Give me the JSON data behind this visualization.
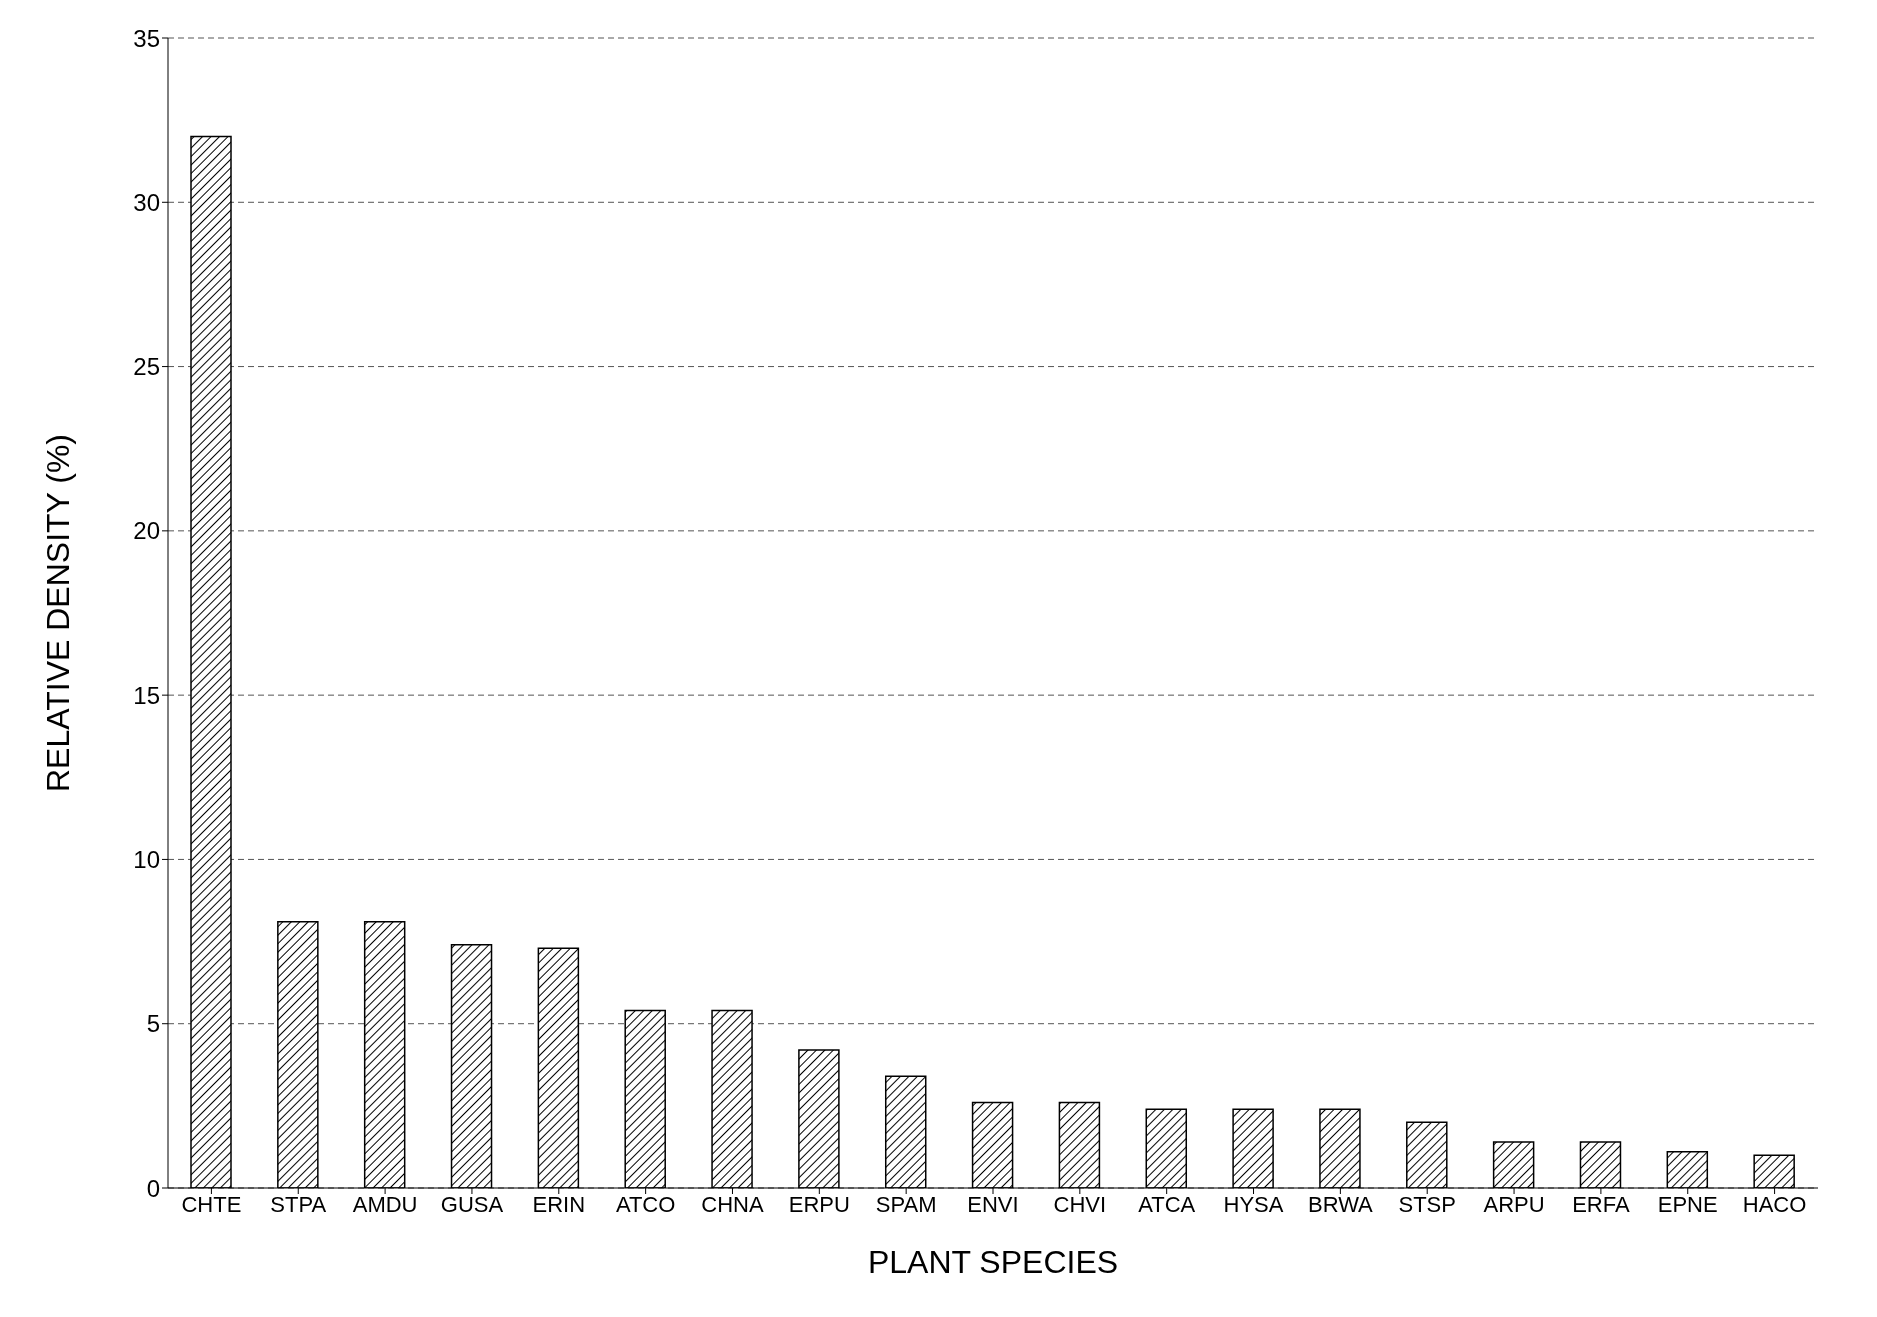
{
  "chart_data": {
    "type": "bar",
    "xlabel": "PLANT SPECIES",
    "ylabel": "RELATIVE DENSITY (%)",
    "categories": [
      "CHTE",
      "STPA",
      "AMDU",
      "GUSA",
      "ERIN",
      "ATCO",
      "CHNA",
      "ERPU",
      "SPAM",
      "ENVI",
      "CHVI",
      "ATCA",
      "HYSA",
      "BRWA",
      "STSP",
      "ARPU",
      "ERFA",
      "EPNE",
      "HACO"
    ],
    "values": [
      32.0,
      8.1,
      8.1,
      7.4,
      7.3,
      5.4,
      5.4,
      4.2,
      3.4,
      2.6,
      2.6,
      2.4,
      2.4,
      2.4,
      2.0,
      1.4,
      1.4,
      1.1,
      1.0
    ],
    "color": "#000000",
    "ylim": [
      0,
      35
    ],
    "yticks": [
      0,
      5,
      10,
      15,
      20,
      25,
      30,
      35
    ],
    "grid": "y"
  }
}
